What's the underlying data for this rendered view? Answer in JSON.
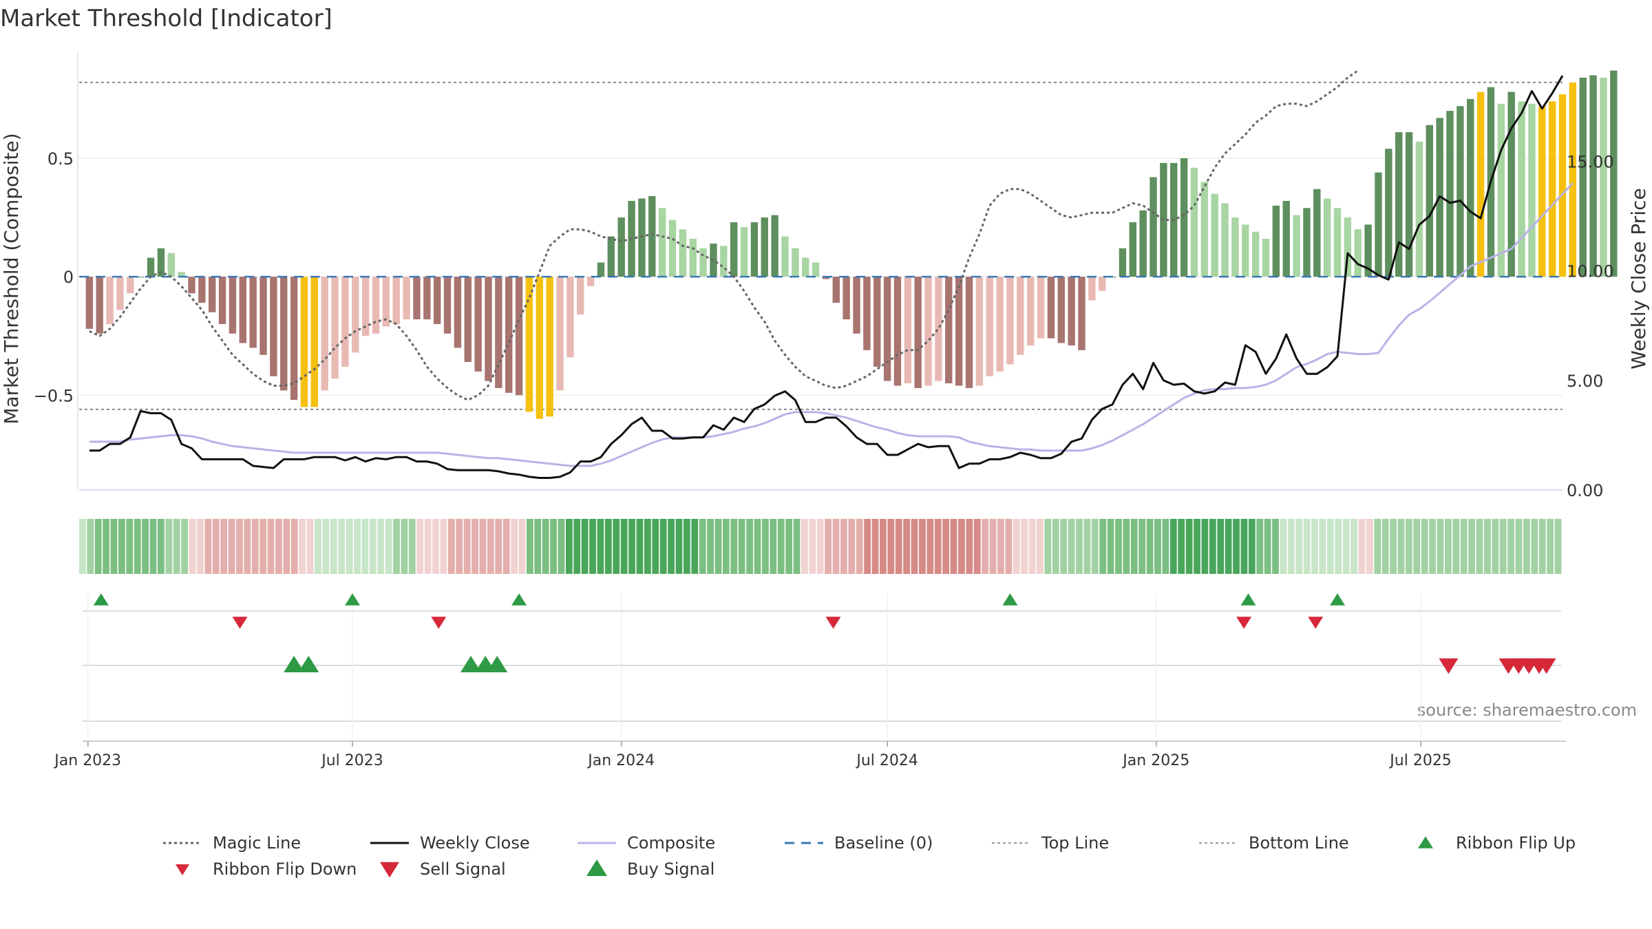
{
  "chart_data": {
    "type": "bar",
    "title": "Market Threshold [Indicator]",
    "ylabel_left": "Market Threshold (Composite)",
    "ylabel_right": "Weekly Close Price",
    "source": "source: sharemaestro.com",
    "x_range": [
      "2022-12-26",
      "2025-10-06"
    ],
    "x_ticks": [
      {
        "date": "2023-01-01",
        "label": "Jan 2023"
      },
      {
        "date": "2023-07-01",
        "label": "Jul 2023"
      },
      {
        "date": "2024-01-01",
        "label": "Jan 2024"
      },
      {
        "date": "2024-07-01",
        "label": "Jul 2024"
      },
      {
        "date": "2025-01-01",
        "label": "Jan 2025"
      },
      {
        "date": "2025-07-01",
        "label": "Jul 2025"
      }
    ],
    "left_axis": {
      "ylim": [
        -0.9,
        0.95
      ],
      "ticks": [
        {
          "v": 0.5,
          "label": "0.5"
        },
        {
          "v": 0,
          "label": "0"
        },
        {
          "v": -0.5,
          "label": "−0.5"
        }
      ]
    },
    "right_axis": {
      "ylim": [
        0,
        20.0
      ],
      "ticks": [
        {
          "v": 15,
          "label": "15.00"
        },
        {
          "v": 10,
          "label": "10.00"
        },
        {
          "v": 5,
          "label": "5.00"
        },
        {
          "v": 0,
          "label": "0.00"
        }
      ]
    },
    "top_line": 0.82,
    "bottom_line": -0.56,
    "start_date": "2023-01-02",
    "week_step_days": 7,
    "colors": {
      "strong_pos": "#5e8f5e",
      "weak_pos": "#a8d5a2",
      "strong_neg": "#a87470",
      "weak_neg": "#e8b9b3",
      "extreme": "#f5c010",
      "weekly_close": "#111111",
      "composite": "#b9b3e6",
      "magic": "#666666",
      "baseline": "#3a78b5",
      "buy": "#2e9a45",
      "sell": "#d62839"
    },
    "composite_bars": [
      -0.22,
      -0.24,
      -0.2,
      -0.14,
      -0.07,
      0.0,
      0.08,
      0.12,
      0.1,
      0.02,
      -0.07,
      -0.11,
      -0.15,
      -0.2,
      -0.24,
      -0.28,
      -0.3,
      -0.33,
      -0.42,
      -0.48,
      -0.52,
      -0.55,
      -0.55,
      -0.48,
      -0.43,
      -0.38,
      -0.32,
      -0.25,
      -0.24,
      -0.21,
      -0.2,
      -0.18,
      -0.18,
      -0.18,
      -0.2,
      -0.24,
      -0.3,
      -0.36,
      -0.4,
      -0.44,
      -0.47,
      -0.49,
      -0.5,
      -0.57,
      -0.6,
      -0.59,
      -0.48,
      -0.34,
      -0.16,
      -0.04,
      0.06,
      0.17,
      0.25,
      0.32,
      0.33,
      0.34,
      0.29,
      0.24,
      0.2,
      0.16,
      0.12,
      0.14,
      0.13,
      0.23,
      0.21,
      0.23,
      0.25,
      0.26,
      0.17,
      0.12,
      0.08,
      0.06,
      -0.01,
      -0.11,
      -0.18,
      -0.24,
      -0.31,
      -0.38,
      -0.44,
      -0.46,
      -0.45,
      -0.47,
      -0.46,
      -0.44,
      -0.45,
      -0.46,
      -0.47,
      -0.46,
      -0.42,
      -0.4,
      -0.37,
      -0.33,
      -0.29,
      -0.26,
      -0.26,
      -0.28,
      -0.29,
      -0.31,
      -0.1,
      -0.06,
      0.0,
      0.12,
      0.23,
      0.28,
      0.42,
      0.48,
      0.48,
      0.5,
      0.46,
      0.4,
      0.35,
      0.31,
      0.25,
      0.22,
      0.19,
      0.16,
      0.3,
      0.32,
      0.26,
      0.29,
      0.37,
      0.33,
      0.29,
      0.25,
      0.2,
      0.22,
      0.44,
      0.54,
      0.61,
      0.61,
      0.57,
      0.64,
      0.67,
      0.7,
      0.72,
      0.75,
      0.78,
      0.8,
      0.73,
      0.78,
      0.74,
      0.73,
      0.72,
      0.74,
      0.77,
      0.82,
      0.84,
      0.85,
      0.84,
      0.87
    ],
    "extreme_weeks": [
      21,
      22,
      43,
      44,
      45,
      136,
      142,
      143,
      144,
      145
    ],
    "composite_line": [
      2.2,
      2.2,
      2.2,
      2.2,
      2.3,
      2.35,
      2.4,
      2.45,
      2.5,
      2.5,
      2.45,
      2.35,
      2.2,
      2.1,
      2.0,
      1.95,
      1.9,
      1.85,
      1.8,
      1.75,
      1.7,
      1.7,
      1.7,
      1.7,
      1.7,
      1.7,
      1.7,
      1.7,
      1.7,
      1.7,
      1.7,
      1.7,
      1.7,
      1.7,
      1.7,
      1.65,
      1.6,
      1.55,
      1.5,
      1.45,
      1.45,
      1.4,
      1.35,
      1.3,
      1.25,
      1.2,
      1.15,
      1.1,
      1.1,
      1.1,
      1.2,
      1.35,
      1.55,
      1.75,
      1.95,
      2.15,
      2.3,
      2.4,
      2.4,
      2.4,
      2.4,
      2.45,
      2.55,
      2.65,
      2.8,
      2.9,
      3.05,
      3.25,
      3.45,
      3.55,
      3.55,
      3.55,
      3.5,
      3.4,
      3.3,
      3.15,
      3.0,
      2.85,
      2.75,
      2.6,
      2.5,
      2.45,
      2.45,
      2.45,
      2.45,
      2.4,
      2.2,
      2.1,
      2.0,
      1.95,
      1.9,
      1.85,
      1.85,
      1.8,
      1.8,
      1.8,
      1.8,
      1.8,
      1.9,
      2.05,
      2.25,
      2.5,
      2.75,
      3.0,
      3.3,
      3.6,
      3.9,
      4.2,
      4.4,
      4.55,
      4.6,
      4.6,
      4.65,
      4.65,
      4.7,
      4.8,
      5.0,
      5.3,
      5.6,
      5.75,
      5.95,
      6.2,
      6.3,
      6.25,
      6.2,
      6.2,
      6.25,
      6.9,
      7.5,
      8.0,
      8.25,
      8.6,
      9.0,
      9.4,
      9.8,
      10.2,
      10.4,
      10.6,
      10.8,
      11.0,
      11.5,
      12.0,
      12.5,
      13.0,
      13.5,
      14.0
    ],
    "weekly_close": [
      1.8,
      1.8,
      2.1,
      2.1,
      2.4,
      3.6,
      3.5,
      3.5,
      3.2,
      2.1,
      1.9,
      1.4,
      1.4,
      1.4,
      1.4,
      1.4,
      1.1,
      1.05,
      1.0,
      1.4,
      1.4,
      1.4,
      1.5,
      1.5,
      1.5,
      1.35,
      1.5,
      1.3,
      1.45,
      1.4,
      1.5,
      1.5,
      1.3,
      1.3,
      1.2,
      0.95,
      0.9,
      0.9,
      0.9,
      0.9,
      0.85,
      0.75,
      0.7,
      0.6,
      0.55,
      0.55,
      0.6,
      0.8,
      1.3,
      1.3,
      1.5,
      2.1,
      2.5,
      3.0,
      3.3,
      2.7,
      2.7,
      2.35,
      2.35,
      2.4,
      2.4,
      2.95,
      2.75,
      3.3,
      3.1,
      3.7,
      3.9,
      4.3,
      4.5,
      4.1,
      3.1,
      3.1,
      3.3,
      3.3,
      2.9,
      2.4,
      2.1,
      2.1,
      1.6,
      1.6,
      1.85,
      2.1,
      1.95,
      2.0,
      2.0,
      1.0,
      1.2,
      1.2,
      1.4,
      1.4,
      1.5,
      1.7,
      1.6,
      1.45,
      1.45,
      1.65,
      2.2,
      2.35,
      3.2,
      3.7,
      3.9,
      4.8,
      5.3,
      4.6,
      5.8,
      5.0,
      4.8,
      4.85,
      4.5,
      4.4,
      4.5,
      4.9,
      4.8,
      6.6,
      6.3,
      5.3,
      6.0,
      7.1,
      6.0,
      5.3,
      5.3,
      5.6,
      6.1,
      10.8,
      10.3,
      10.1,
      9.8,
      9.6,
      11.3,
      11.0,
      12.1,
      12.5,
      13.4,
      13.1,
      13.2,
      12.7,
      12.4,
      14.1,
      15.5,
      16.5,
      17.2,
      18.2,
      17.4,
      18.1,
      18.9
    ],
    "magic_line": [
      -0.23,
      -0.25,
      -0.22,
      -0.17,
      -0.11,
      -0.05,
      0.0,
      0.02,
      0.0,
      -0.04,
      -0.09,
      -0.14,
      -0.21,
      -0.27,
      -0.33,
      -0.37,
      -0.41,
      -0.44,
      -0.46,
      -0.46,
      -0.45,
      -0.42,
      -0.39,
      -0.35,
      -0.3,
      -0.26,
      -0.23,
      -0.21,
      -0.19,
      -0.18,
      -0.2,
      -0.25,
      -0.31,
      -0.38,
      -0.43,
      -0.47,
      -0.5,
      -0.52,
      -0.5,
      -0.46,
      -0.37,
      -0.28,
      -0.18,
      -0.09,
      0.02,
      0.13,
      0.17,
      0.2,
      0.2,
      0.19,
      0.17,
      0.16,
      0.15,
      0.16,
      0.17,
      0.18,
      0.17,
      0.16,
      0.13,
      0.12,
      0.09,
      0.07,
      0.04,
      0.0,
      -0.06,
      -0.13,
      -0.19,
      -0.27,
      -0.33,
      -0.38,
      -0.42,
      -0.44,
      -0.46,
      -0.47,
      -0.46,
      -0.44,
      -0.42,
      -0.39,
      -0.36,
      -0.33,
      -0.31,
      -0.31,
      -0.27,
      -0.22,
      -0.14,
      -0.04,
      0.08,
      0.18,
      0.3,
      0.35,
      0.37,
      0.37,
      0.35,
      0.32,
      0.29,
      0.26,
      0.25,
      0.26,
      0.27,
      0.27,
      0.27,
      0.29,
      0.31,
      0.3,
      0.27,
      0.24,
      0.24,
      0.26,
      0.3,
      0.38,
      0.46,
      0.52,
      0.56,
      0.6,
      0.65,
      0.68,
      0.72,
      0.73,
      0.73,
      0.72,
      0.74,
      0.77,
      0.8,
      0.84,
      0.87
    ],
    "ribbon": [
      1,
      2,
      3,
      3,
      3,
      3,
      3,
      3,
      3,
      3,
      3,
      2,
      2,
      2,
      -1,
      -1,
      -2,
      -2,
      -2,
      -2,
      -2,
      -2,
      -2,
      -2,
      -2,
      -2,
      -2,
      -2,
      -1,
      -1,
      1,
      1,
      1,
      1,
      1,
      1,
      1,
      1,
      1,
      1,
      2,
      2,
      2,
      -1,
      -1,
      -1,
      -1,
      -2,
      -2,
      -2,
      -2,
      -2,
      -2,
      -2,
      -2,
      -1,
      -1,
      3,
      3,
      3,
      3,
      3,
      4,
      4,
      4,
      4,
      4,
      4,
      4,
      4,
      4,
      4,
      4,
      4,
      4,
      4,
      4,
      4,
      4,
      3,
      3,
      3,
      3,
      3,
      3,
      3,
      3,
      3,
      3,
      3,
      3,
      3,
      -1,
      -1,
      -1,
      -2,
      -2,
      -2,
      -2,
      -2,
      -3,
      -3,
      -3,
      -3,
      -3,
      -3,
      -3,
      -3,
      -3,
      -3,
      -3,
      -3,
      -3,
      -3,
      -3,
      -2,
      -2,
      -2,
      -2,
      -1,
      -1,
      -1,
      -1,
      2,
      2,
      2,
      2,
      2,
      2,
      2,
      3,
      3,
      3,
      3,
      3,
      3,
      3,
      3,
      3,
      4,
      4,
      4,
      4,
      4,
      4,
      4,
      4,
      4,
      4,
      4,
      3,
      3,
      3,
      1,
      1,
      1,
      1,
      1,
      1,
      1,
      1,
      1,
      1,
      -1,
      -1,
      2,
      2,
      2,
      2,
      2,
      2,
      2,
      2,
      2,
      2,
      2,
      2,
      2,
      2,
      2,
      2,
      2,
      2,
      2,
      2,
      2,
      2,
      2,
      2
    ],
    "ribbon_flip_up": [
      "2023-01-10",
      "2023-07-01",
      "2023-10-23",
      "2024-09-23",
      "2025-03-05",
      "2025-05-05"
    ],
    "ribbon_flip_down": [
      "2023-04-15",
      "2023-08-29",
      "2024-05-25",
      "2025-03-02",
      "2025-04-20"
    ],
    "buy_signal": [
      "2023-05-22",
      "2023-06-01",
      "2023-09-20",
      "2023-09-30",
      "2023-10-08"
    ],
    "sell_signal": [
      "2025-07-20",
      "2025-08-30",
      "2025-09-06",
      "2025-09-13",
      "2025-09-20",
      "2025-09-25"
    ],
    "legend": [
      {
        "key": "magic",
        "label": "Magic Line",
        "kind": "dotted"
      },
      {
        "key": "close",
        "label": "Weekly Close",
        "kind": "line"
      },
      {
        "key": "composite",
        "label": "Composite",
        "kind": "line-light"
      },
      {
        "key": "baseline",
        "label": "Baseline (0)",
        "kind": "dashed"
      },
      {
        "key": "top",
        "label": "Top Line",
        "kind": "dotted-light"
      },
      {
        "key": "bottom",
        "label": "Bottom Line",
        "kind": "dotted-light"
      },
      {
        "key": "flipup",
        "label": "Ribbon Flip Up",
        "kind": "tri-up-small"
      },
      {
        "key": "flipdown",
        "label": "Ribbon Flip Down",
        "kind": "tri-down-small"
      },
      {
        "key": "sell",
        "label": "Sell Signal",
        "kind": "tri-down-big"
      },
      {
        "key": "buy",
        "label": "Buy Signal",
        "kind": "tri-up-big"
      }
    ]
  }
}
